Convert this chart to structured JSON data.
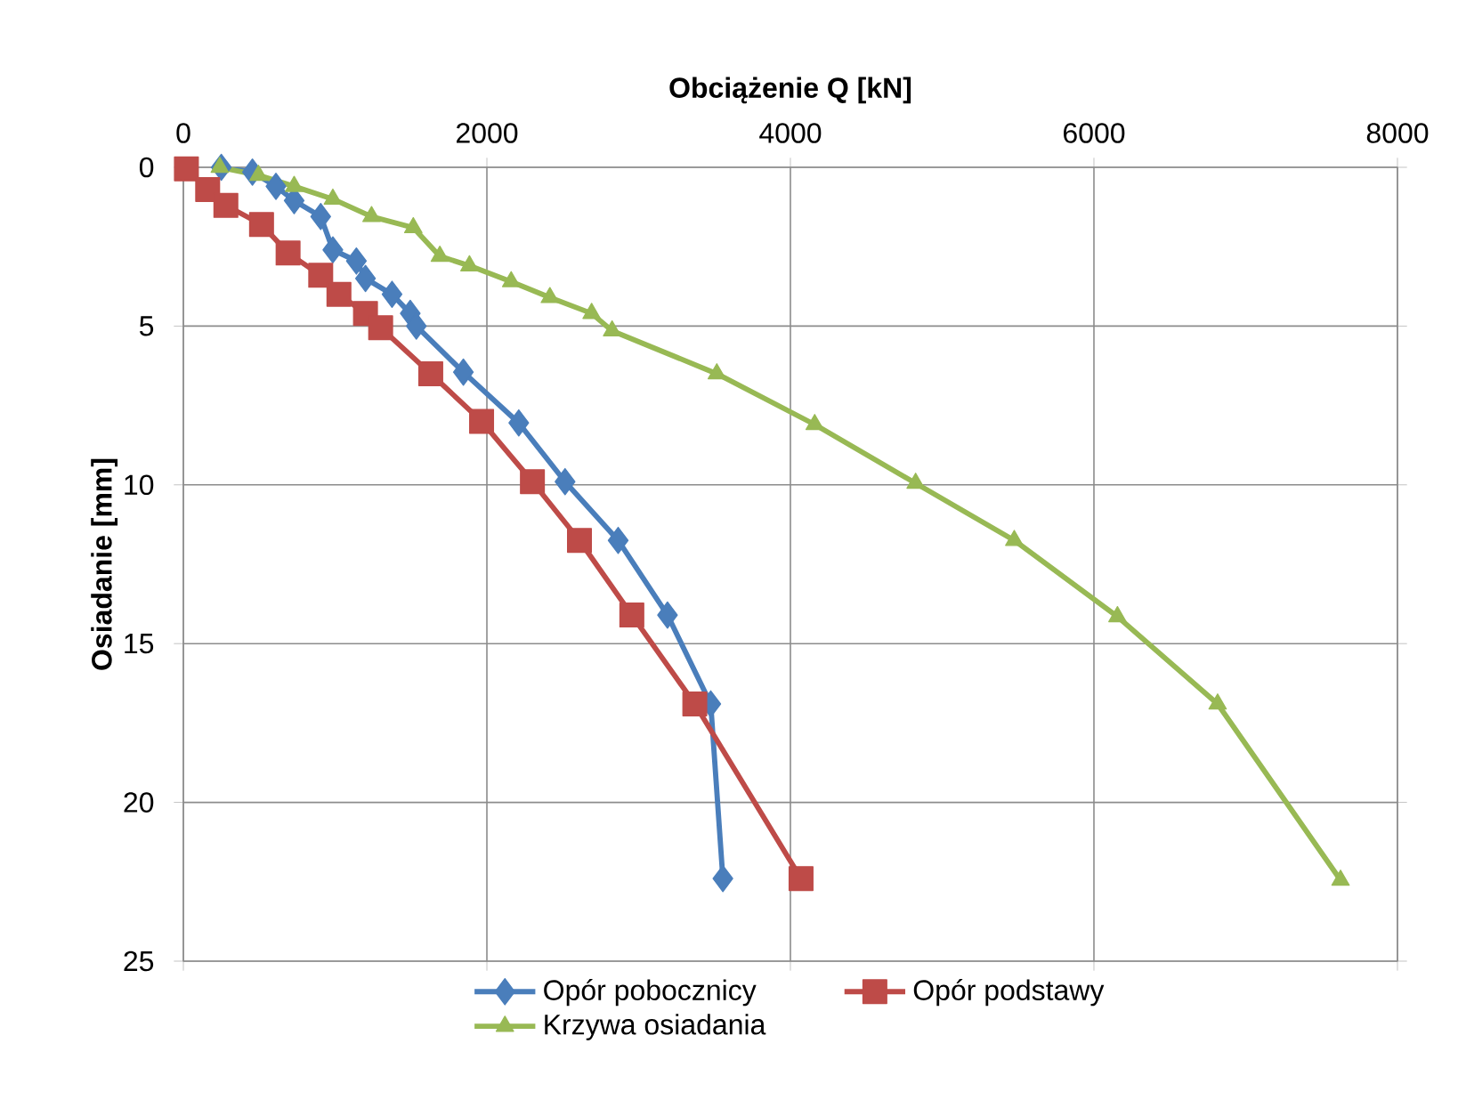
{
  "chart_data": {
    "type": "line",
    "xlabel": "Obciążenie Q [kN]",
    "ylabel": "Osiadanie [mm]",
    "xlim": [
      0,
      8000
    ],
    "xticks": [
      0,
      2000,
      4000,
      6000,
      8000
    ],
    "ylim": [
      25,
      0
    ],
    "yticks": [
      0,
      5,
      10,
      15,
      20,
      25
    ],
    "grid": true,
    "legend": "bottom",
    "series": [
      {
        "name": "Opór pobocznicy",
        "color": "#4a7ebb",
        "marker": "diamond",
        "x": [
          250,
          455,
          610,
          730,
          905,
          985,
          1140,
          1200,
          1375,
          1495,
          1535,
          1845,
          2210,
          2515,
          2865,
          3190,
          3475,
          3555
        ],
        "values": [
          0,
          0.15,
          0.6,
          1.05,
          1.55,
          2.6,
          2.95,
          3.5,
          4.0,
          4.6,
          5.0,
          6.45,
          8.05,
          9.9,
          11.75,
          14.1,
          16.9,
          22.4
        ]
      },
      {
        "name": "Opór podstawy",
        "color": "#be4b48",
        "marker": "square",
        "x": [
          20,
          160,
          280,
          515,
          690,
          905,
          1025,
          1200,
          1300,
          1630,
          1965,
          2300,
          2610,
          2955,
          3370,
          4070
        ],
        "values": [
          0.05,
          0.7,
          1.2,
          1.8,
          2.7,
          3.4,
          4.0,
          4.6,
          5.05,
          6.5,
          8.0,
          9.9,
          11.75,
          14.1,
          16.9,
          22.4
        ]
      },
      {
        "name": "Krzywa osiadania",
        "color": "#98b954",
        "marker": "triangle",
        "x": [
          240,
          495,
          730,
          985,
          1240,
          1515,
          1690,
          1885,
          2160,
          2415,
          2690,
          2825,
          3515,
          4160,
          4825,
          5475,
          6155,
          6815,
          7625
        ],
        "values": [
          0,
          0.25,
          0.6,
          1.0,
          1.55,
          1.9,
          2.8,
          3.1,
          3.6,
          4.1,
          4.6,
          5.15,
          6.5,
          8.1,
          9.95,
          11.75,
          14.15,
          16.9,
          22.45
        ]
      }
    ]
  }
}
